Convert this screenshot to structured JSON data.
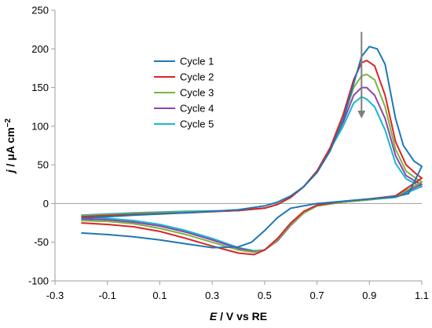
{
  "chart_data": {
    "type": "line",
    "title": "",
    "xlabel": {
      "var": "E",
      "rest": " / V vs RE"
    },
    "ylabel": {
      "var": "j",
      "rest": " / μA cm",
      "sup": "−2"
    },
    "xlim": [
      -0.3,
      1.1
    ],
    "ylim": [
      -100,
      250
    ],
    "xticks": [
      -0.3,
      -0.1,
      0.1,
      0.3,
      0.5,
      0.7,
      0.9,
      1.1
    ],
    "yticks": [
      -100,
      -50,
      0,
      50,
      100,
      150,
      200,
      250
    ],
    "xtick_labels": [
      "-0.3",
      "-0.1",
      "0.1",
      "0.3",
      "0.5",
      "0.7",
      "0.9",
      "1.1"
    ],
    "ytick_labels": [
      "-100",
      "-50",
      "0",
      "50",
      "100",
      "150",
      "200",
      "250"
    ],
    "zero_line": true,
    "grid": false,
    "legend_position": "upper-left-center",
    "annotation": {
      "type": "arrow-down",
      "x": 0.87,
      "y_from": 222,
      "y_to": 112,
      "color": "#7f7f7f"
    },
    "series": [
      {
        "name": "Cycle 1",
        "color": "#1f77b4",
        "forward": [
          [
            -0.2,
            -19
          ],
          [
            0.0,
            -15
          ],
          [
            0.2,
            -12
          ],
          [
            0.4,
            -8
          ],
          [
            0.5,
            -3
          ],
          [
            0.55,
            2
          ],
          [
            0.6,
            10
          ],
          [
            0.65,
            22
          ],
          [
            0.7,
            40
          ],
          [
            0.75,
            68
          ],
          [
            0.8,
            108
          ],
          [
            0.84,
            155
          ],
          [
            0.87,
            190
          ],
          [
            0.9,
            203
          ],
          [
            0.93,
            200
          ],
          [
            0.96,
            180
          ],
          [
            1.0,
            110
          ],
          [
            1.03,
            75
          ],
          [
            1.07,
            55
          ],
          [
            1.1,
            48
          ]
        ],
        "reverse": [
          [
            1.1,
            22
          ],
          [
            1.05,
            13
          ],
          [
            1.0,
            9
          ],
          [
            0.9,
            6
          ],
          [
            0.8,
            3
          ],
          [
            0.7,
            0
          ],
          [
            0.6,
            -6
          ],
          [
            0.55,
            -18
          ],
          [
            0.5,
            -35
          ],
          [
            0.45,
            -50
          ],
          [
            0.4,
            -56
          ],
          [
            0.3,
            -57
          ],
          [
            0.2,
            -52
          ],
          [
            0.1,
            -47
          ],
          [
            0.0,
            -43
          ],
          [
            -0.1,
            -40
          ],
          [
            -0.2,
            -38
          ]
        ]
      },
      {
        "name": "Cycle 2",
        "color": "#d62728",
        "forward": [
          [
            -0.2,
            -17
          ],
          [
            0.0,
            -14
          ],
          [
            0.2,
            -12
          ],
          [
            0.4,
            -9
          ],
          [
            0.5,
            -6
          ],
          [
            0.55,
            -1
          ],
          [
            0.6,
            8
          ],
          [
            0.65,
            22
          ],
          [
            0.7,
            42
          ],
          [
            0.75,
            72
          ],
          [
            0.8,
            115
          ],
          [
            0.84,
            160
          ],
          [
            0.87,
            182
          ],
          [
            0.89,
            185
          ],
          [
            0.92,
            178
          ],
          [
            0.96,
            140
          ],
          [
            1.0,
            80
          ],
          [
            1.04,
            50
          ],
          [
            1.08,
            38
          ],
          [
            1.1,
            33
          ]
        ],
        "reverse": [
          [
            1.1,
            20
          ],
          [
            1.0,
            10
          ],
          [
            0.9,
            6
          ],
          [
            0.8,
            3
          ],
          [
            0.7,
            -2
          ],
          [
            0.65,
            -10
          ],
          [
            0.6,
            -25
          ],
          [
            0.55,
            -45
          ],
          [
            0.5,
            -60
          ],
          [
            0.46,
            -66
          ],
          [
            0.4,
            -64
          ],
          [
            0.3,
            -55
          ],
          [
            0.2,
            -45
          ],
          [
            0.1,
            -36
          ],
          [
            0.0,
            -30
          ],
          [
            -0.1,
            -27
          ],
          [
            -0.2,
            -25
          ]
        ]
      },
      {
        "name": "Cycle 3",
        "color": "#7cb342",
        "forward": [
          [
            -0.2,
            -16
          ],
          [
            0.0,
            -13
          ],
          [
            0.2,
            -11
          ],
          [
            0.4,
            -9
          ],
          [
            0.5,
            -6
          ],
          [
            0.55,
            -1
          ],
          [
            0.6,
            8
          ],
          [
            0.65,
            22
          ],
          [
            0.7,
            42
          ],
          [
            0.75,
            72
          ],
          [
            0.8,
            110
          ],
          [
            0.84,
            150
          ],
          [
            0.87,
            165
          ],
          [
            0.89,
            167
          ],
          [
            0.92,
            160
          ],
          [
            0.96,
            125
          ],
          [
            1.0,
            70
          ],
          [
            1.04,
            42
          ],
          [
            1.08,
            32
          ],
          [
            1.1,
            28
          ]
        ],
        "reverse": [
          [
            1.1,
            18
          ],
          [
            1.0,
            9
          ],
          [
            0.9,
            5
          ],
          [
            0.8,
            2
          ],
          [
            0.7,
            -3
          ],
          [
            0.65,
            -12
          ],
          [
            0.6,
            -27
          ],
          [
            0.55,
            -47
          ],
          [
            0.5,
            -60
          ],
          [
            0.46,
            -63
          ],
          [
            0.4,
            -60
          ],
          [
            0.3,
            -50
          ],
          [
            0.2,
            -40
          ],
          [
            0.1,
            -32
          ],
          [
            0.0,
            -26
          ],
          [
            -0.1,
            -23
          ],
          [
            -0.2,
            -22
          ]
        ]
      },
      {
        "name": "Cycle 4",
        "color": "#8e44ad",
        "forward": [
          [
            -0.2,
            -16
          ],
          [
            0.0,
            -13
          ],
          [
            0.2,
            -11
          ],
          [
            0.4,
            -9
          ],
          [
            0.5,
            -6
          ],
          [
            0.55,
            -1
          ],
          [
            0.6,
            8
          ],
          [
            0.65,
            22
          ],
          [
            0.7,
            42
          ],
          [
            0.75,
            72
          ],
          [
            0.8,
            105
          ],
          [
            0.84,
            140
          ],
          [
            0.87,
            150
          ],
          [
            0.89,
            150
          ],
          [
            0.92,
            140
          ],
          [
            0.96,
            110
          ],
          [
            1.0,
            62
          ],
          [
            1.04,
            36
          ],
          [
            1.08,
            28
          ],
          [
            1.1,
            25
          ]
        ],
        "reverse": [
          [
            1.1,
            17
          ],
          [
            1.0,
            9
          ],
          [
            0.9,
            5
          ],
          [
            0.8,
            2
          ],
          [
            0.7,
            -3
          ],
          [
            0.65,
            -12
          ],
          [
            0.6,
            -28
          ],
          [
            0.55,
            -48
          ],
          [
            0.5,
            -60
          ],
          [
            0.46,
            -62
          ],
          [
            0.4,
            -58
          ],
          [
            0.3,
            -47
          ],
          [
            0.2,
            -37
          ],
          [
            0.1,
            -29
          ],
          [
            0.0,
            -24
          ],
          [
            -0.1,
            -21
          ],
          [
            -0.2,
            -20
          ]
        ]
      },
      {
        "name": "Cycle 5",
        "color": "#17b8d0",
        "forward": [
          [
            -0.2,
            -15
          ],
          [
            0.0,
            -12
          ],
          [
            0.2,
            -10
          ],
          [
            0.4,
            -9
          ],
          [
            0.5,
            -6
          ],
          [
            0.55,
            -1
          ],
          [
            0.6,
            8
          ],
          [
            0.65,
            22
          ],
          [
            0.7,
            42
          ],
          [
            0.75,
            70
          ],
          [
            0.8,
            100
          ],
          [
            0.84,
            130
          ],
          [
            0.87,
            138
          ],
          [
            0.89,
            135
          ],
          [
            0.92,
            125
          ],
          [
            0.96,
            95
          ],
          [
            1.0,
            52
          ],
          [
            1.04,
            32
          ],
          [
            1.08,
            25
          ],
          [
            1.1,
            22
          ]
        ],
        "reverse": [
          [
            1.1,
            15
          ],
          [
            1.0,
            8
          ],
          [
            0.9,
            5
          ],
          [
            0.8,
            2
          ],
          [
            0.7,
            -3
          ],
          [
            0.65,
            -12
          ],
          [
            0.6,
            -28
          ],
          [
            0.55,
            -48
          ],
          [
            0.5,
            -60
          ],
          [
            0.46,
            -61
          ],
          [
            0.4,
            -57
          ],
          [
            0.3,
            -45
          ],
          [
            0.2,
            -35
          ],
          [
            0.1,
            -27
          ],
          [
            0.0,
            -22
          ],
          [
            -0.1,
            -19
          ],
          [
            -0.2,
            -18
          ]
        ]
      }
    ]
  }
}
